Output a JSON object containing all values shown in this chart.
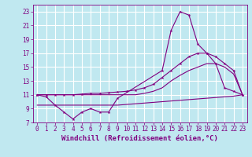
{
  "background_color": "#c0e8f0",
  "grid_color": "#ffffff",
  "line_color": "#800080",
  "xlabel": "Windchill (Refroidissement éolien,°C)",
  "xlim": [
    -0.5,
    23.5
  ],
  "ylim": [
    7,
    24
  ],
  "xticks": [
    0,
    1,
    2,
    3,
    4,
    5,
    6,
    7,
    8,
    9,
    10,
    11,
    12,
    13,
    14,
    15,
    16,
    17,
    18,
    19,
    20,
    21,
    22,
    23
  ],
  "yticks": [
    7,
    9,
    11,
    13,
    15,
    17,
    19,
    21,
    23
  ],
  "s1_x": [
    0,
    1,
    2,
    3,
    4,
    5,
    6,
    7,
    8,
    9,
    14,
    15,
    16,
    17,
    18,
    19,
    20,
    21,
    22,
    23
  ],
  "s1_y": [
    11,
    10.7,
    9.5,
    8.5,
    7.5,
    8.5,
    9.0,
    8.5,
    8.5,
    10.5,
    14.5,
    20.3,
    23.0,
    22.5,
    18.3,
    17.0,
    15.5,
    12.0,
    11.5,
    11.0
  ],
  "s2_x": [
    0,
    1,
    2,
    3,
    4,
    5,
    6,
    7,
    8,
    9,
    10,
    11,
    12,
    13,
    14,
    15,
    16,
    17,
    18,
    19,
    20,
    21,
    22,
    23
  ],
  "s2_y": [
    11.0,
    11.0,
    11.0,
    11.0,
    11.0,
    11.1,
    11.2,
    11.2,
    11.3,
    11.4,
    11.5,
    11.7,
    12.0,
    12.5,
    13.5,
    14.5,
    15.5,
    16.5,
    17.0,
    17.0,
    16.5,
    15.5,
    14.5,
    11.0
  ],
  "s3_x": [
    0,
    1,
    2,
    3,
    4,
    5,
    6,
    7,
    8,
    9,
    10,
    11,
    12,
    13,
    14,
    15,
    16,
    17,
    18,
    19,
    20,
    21,
    22,
    23
  ],
  "s3_y": [
    11.0,
    11.0,
    11.0,
    11.0,
    11.0,
    11.0,
    11.0,
    11.0,
    11.0,
    11.0,
    11.0,
    11.0,
    11.2,
    11.5,
    12.0,
    13.0,
    13.8,
    14.5,
    15.0,
    15.5,
    15.5,
    15.0,
    14.0,
    11.0
  ],
  "s4_x": [
    0,
    1,
    2,
    3,
    4,
    5,
    6,
    7,
    8,
    9,
    10,
    11,
    12,
    13,
    14,
    15,
    16,
    17,
    18,
    19,
    20,
    21,
    22,
    23
  ],
  "s4_y": [
    9.5,
    9.5,
    9.5,
    9.5,
    9.5,
    9.5,
    9.5,
    9.5,
    9.5,
    9.5,
    9.6,
    9.7,
    9.8,
    9.9,
    10.0,
    10.1,
    10.2,
    10.3,
    10.4,
    10.5,
    10.6,
    10.7,
    10.8,
    11.0
  ],
  "tick_fontsize": 5.5,
  "label_fontsize": 6.5,
  "linewidth": 0.8,
  "marker_size": 3
}
